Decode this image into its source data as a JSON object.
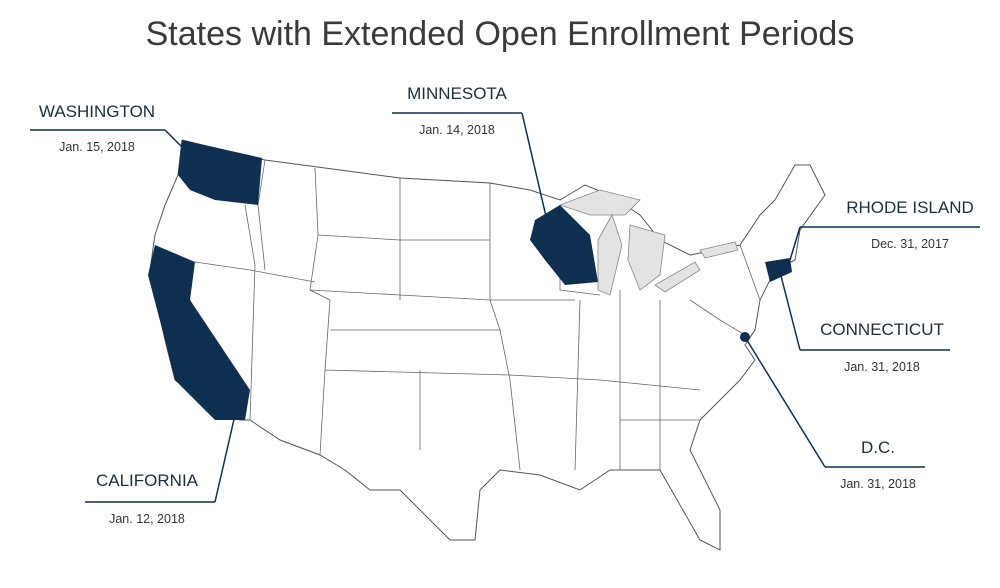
{
  "title": "States with Extended Open Enrollment Periods",
  "callouts": [
    {
      "state": "WASHINGTON",
      "date": "Jan. 15, 2018"
    },
    {
      "state": "MINNESOTA",
      "date": "Jan. 14, 2018"
    },
    {
      "state": "RHODE ISLAND",
      "date": "Dec. 31, 2017"
    },
    {
      "state": "CONNECTICUT",
      "date": "Jan. 31, 2018"
    },
    {
      "state": "D.C.",
      "date": "Jan. 31, 2018"
    },
    {
      "state": "CALIFORNIA",
      "date": "Jan. 12, 2018"
    }
  ]
}
